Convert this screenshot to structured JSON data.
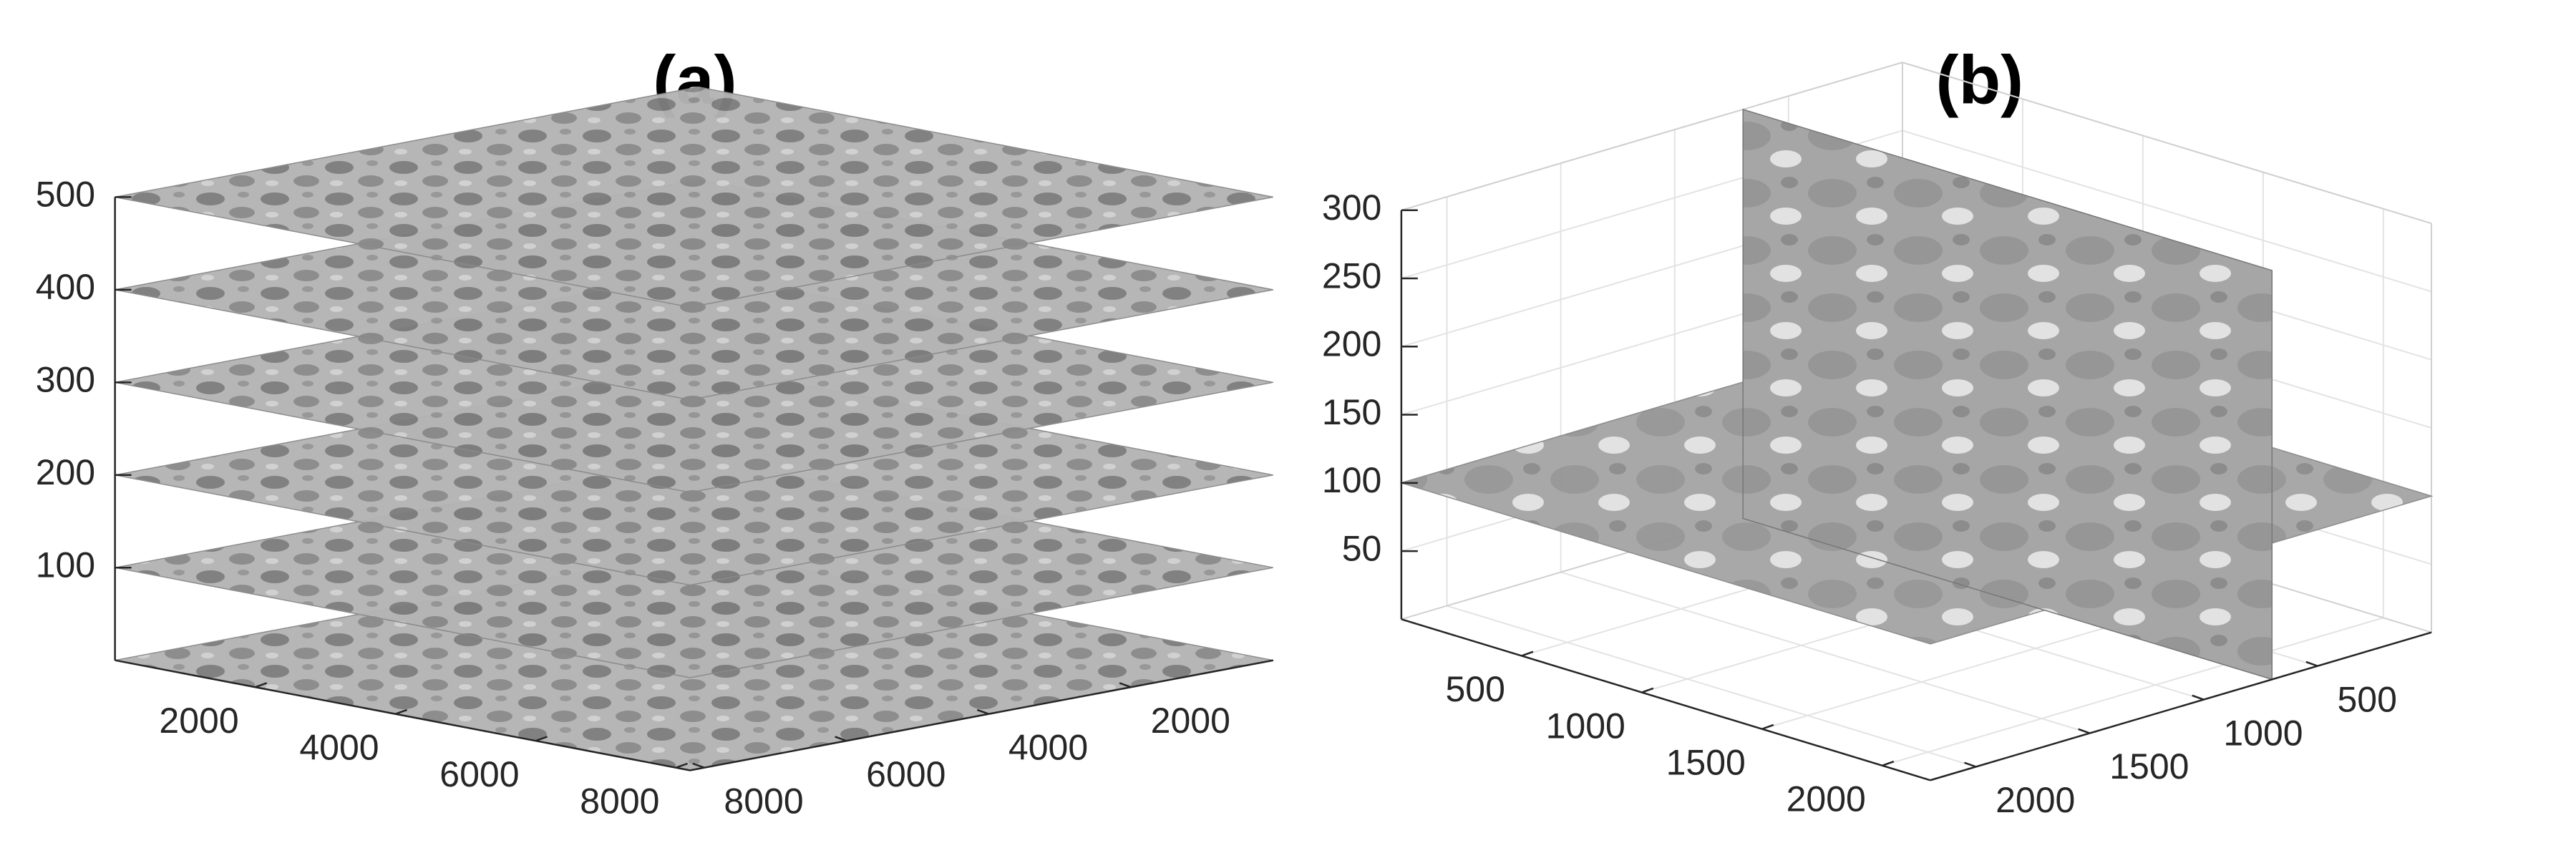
{
  "chart_data": [
    {
      "type": "slice-stack",
      "title": "(a)",
      "xlim": [
        0,
        8200
      ],
      "ylim": [
        0,
        8200
      ],
      "zlim": [
        0,
        500
      ],
      "xticks": [
        2000,
        4000,
        6000,
        8000
      ],
      "yticks": [
        2000,
        4000,
        6000,
        8000
      ],
      "zticks": [
        100,
        200,
        300,
        400,
        500
      ],
      "slice_z": [
        0,
        100,
        200,
        300,
        400,
        500
      ],
      "grid": false
    },
    {
      "type": "orthoslice",
      "title": "(b)",
      "xlim": [
        0,
        2200
      ],
      "ylim": [
        0,
        2200
      ],
      "zlim": [
        0,
        300
      ],
      "xticks": [
        500,
        1000,
        1500,
        2000
      ],
      "yticks": [
        500,
        1000,
        1500,
        2000
      ],
      "zticks": [
        50,
        100,
        150,
        200,
        250,
        300
      ],
      "slice_z": [
        100
      ],
      "slice_y": [
        700
      ],
      "grid": true
    }
  ]
}
